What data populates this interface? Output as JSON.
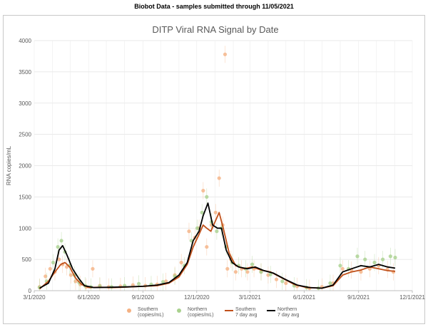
{
  "header": {
    "text": "Biobot Data - samples submitted through 11/05/2021"
  },
  "chart_data": {
    "type": "line",
    "title": "DITP Viral RNA Signal by Date",
    "ylabel": "RNA copies/mL",
    "xlabel": "",
    "ylim": [
      0,
      4000
    ],
    "yticks": [
      "0",
      "500",
      "1000",
      "1500",
      "2000",
      "2500",
      "3000",
      "3500",
      "4000"
    ],
    "xticks": [
      "3/1/2020",
      "6/1/2020",
      "9/1/2020",
      "12/1/2020",
      "3/1/2021",
      "6/1/2021",
      "9/1/2021",
      "12/1/2021"
    ],
    "xtick_values": [
      "2020-03-01",
      "2020-06-01",
      "2020-09-01",
      "2020-12-01",
      "2021-03-01",
      "2021-06-01",
      "2021-09-01",
      "2021-12-01"
    ],
    "xlim": [
      "2020-03-01",
      "2021-12-01"
    ],
    "grid": true,
    "legend_position": "bottom",
    "colors": {
      "southern": "#f4b183",
      "northern": "#a9d18e",
      "southern_avg": "#c0501a",
      "northern_avg": "#000000"
    },
    "series": [
      {
        "name": "Southern (copies/mL)",
        "name_lines": [
          "Southern",
          "(copies/mL)"
        ],
        "kind": "scatter",
        "x": [
          "2020-03-10",
          "2020-03-20",
          "2020-03-28",
          "2020-04-05",
          "2020-04-12",
          "2020-04-18",
          "2020-04-25",
          "2020-05-02",
          "2020-05-10",
          "2020-05-18",
          "2020-05-28",
          "2020-06-08",
          "2020-06-20",
          "2020-07-05",
          "2020-07-25",
          "2020-08-15",
          "2020-09-05",
          "2020-09-25",
          "2020-10-10",
          "2020-10-25",
          "2020-11-05",
          "2020-11-18",
          "2020-11-28",
          "2020-12-05",
          "2020-12-12",
          "2020-12-18",
          "2020-12-26",
          "2021-01-02",
          "2021-01-08",
          "2021-01-14",
          "2021-01-18",
          "2021-01-22",
          "2021-01-28",
          "2021-02-05",
          "2021-02-15",
          "2021-02-25",
          "2021-03-08",
          "2021-03-20",
          "2021-04-01",
          "2021-04-15",
          "2021-05-01",
          "2021-05-20",
          "2021-06-10",
          "2021-07-01",
          "2021-07-20",
          "2021-08-05",
          "2021-08-20",
          "2021-09-05",
          "2021-09-20",
          "2021-10-05",
          "2021-10-20",
          "2021-10-30"
        ],
        "values": [
          60,
          230,
          350,
          300,
          500,
          420,
          380,
          250,
          150,
          100,
          60,
          350,
          80,
          60,
          70,
          90,
          80,
          100,
          150,
          250,
          450,
          950,
          850,
          1000,
          1600,
          700,
          1050,
          1250,
          1800,
          1050,
          3780,
          350,
          500,
          300,
          350,
          300,
          350,
          300,
          250,
          180,
          120,
          70,
          40,
          60,
          120,
          350,
          330,
          300,
          350,
          400,
          340,
          300
        ]
      },
      {
        "name": "Northern (copies/mL)",
        "name_lines": [
          "Northern",
          "(copies/mL)"
        ],
        "kind": "scatter",
        "x": [
          "2020-03-10",
          "2020-03-22",
          "2020-04-02",
          "2020-04-10",
          "2020-04-16",
          "2020-04-22",
          "2020-04-30",
          "2020-05-08",
          "2020-05-16",
          "2020-05-26",
          "2020-06-05",
          "2020-06-20",
          "2020-07-10",
          "2020-08-01",
          "2020-08-25",
          "2020-09-15",
          "2020-10-05",
          "2020-10-25",
          "2020-11-10",
          "2020-11-22",
          "2020-12-02",
          "2020-12-10",
          "2020-12-18",
          "2020-12-26",
          "2021-01-04",
          "2021-01-12",
          "2021-01-20",
          "2021-01-30",
          "2021-02-10",
          "2021-02-22",
          "2021-03-05",
          "2021-03-20",
          "2021-04-05",
          "2021-04-25",
          "2021-05-15",
          "2021-06-05",
          "2021-06-25",
          "2021-07-15",
          "2021-08-01",
          "2021-08-15",
          "2021-08-30",
          "2021-09-12",
          "2021-09-28",
          "2021-10-12",
          "2021-10-25",
          "2021-11-02"
        ],
        "values": [
          50,
          150,
          450,
          700,
          800,
          620,
          400,
          250,
          130,
          80,
          60,
          70,
          60,
          80,
          110,
          100,
          140,
          230,
          400,
          800,
          1000,
          1250,
          1500,
          1100,
          950,
          1000,
          700,
          450,
          400,
          350,
          420,
          300,
          260,
          150,
          80,
          50,
          40,
          120,
          400,
          350,
          550,
          500,
          450,
          500,
          550,
          530
        ]
      },
      {
        "name": "Southern 7 day avg",
        "name_lines": [
          "Southern",
          "7 day avg"
        ],
        "kind": "line",
        "x": [
          "2020-03-10",
          "2020-03-25",
          "2020-04-05",
          "2020-04-15",
          "2020-04-22",
          "2020-04-30",
          "2020-05-10",
          "2020-05-20",
          "2020-06-01",
          "2020-06-20",
          "2020-07-15",
          "2020-08-10",
          "2020-09-01",
          "2020-09-25",
          "2020-10-15",
          "2020-11-01",
          "2020-11-15",
          "2020-11-25",
          "2020-12-05",
          "2020-12-12",
          "2020-12-18",
          "2020-12-25",
          "2021-01-01",
          "2021-01-08",
          "2021-01-15",
          "2021-01-25",
          "2021-02-05",
          "2021-02-20",
          "2021-03-05",
          "2021-03-20",
          "2021-04-05",
          "2021-04-25",
          "2021-05-15",
          "2021-06-05",
          "2021-07-01",
          "2021-07-20",
          "2021-08-05",
          "2021-08-20",
          "2021-09-05",
          "2021-09-20",
          "2021-10-05",
          "2021-10-20",
          "2021-11-02"
        ],
        "values": [
          30,
          150,
          300,
          420,
          450,
          380,
          200,
          100,
          50,
          55,
          50,
          60,
          70,
          80,
          120,
          220,
          420,
          700,
          900,
          1050,
          1000,
          950,
          1100,
          1250,
          1000,
          600,
          400,
          350,
          380,
          330,
          300,
          200,
          100,
          50,
          40,
          80,
          250,
          300,
          330,
          380,
          350,
          320,
          310
        ]
      },
      {
        "name": "Northern 7 day avg",
        "name_lines": [
          "Northern",
          "7 day avg"
        ],
        "kind": "line",
        "x": [
          "2020-03-10",
          "2020-03-25",
          "2020-04-05",
          "2020-04-12",
          "2020-04-18",
          "2020-04-25",
          "2020-05-05",
          "2020-05-15",
          "2020-05-25",
          "2020-06-10",
          "2020-07-10",
          "2020-08-05",
          "2020-09-01",
          "2020-09-25",
          "2020-10-15",
          "2020-11-01",
          "2020-11-15",
          "2020-11-25",
          "2020-12-05",
          "2020-12-12",
          "2020-12-20",
          "2020-12-28",
          "2021-01-05",
          "2021-01-12",
          "2021-01-20",
          "2021-01-30",
          "2021-02-10",
          "2021-02-25",
          "2021-03-10",
          "2021-03-25",
          "2021-04-10",
          "2021-04-30",
          "2021-05-20",
          "2021-06-10",
          "2021-07-01",
          "2021-07-20",
          "2021-08-05",
          "2021-08-20",
          "2021-09-05",
          "2021-09-20",
          "2021-10-05",
          "2021-10-20",
          "2021-11-02"
        ],
        "values": [
          40,
          120,
          350,
          650,
          720,
          580,
          350,
          200,
          80,
          50,
          55,
          60,
          70,
          90,
          130,
          250,
          450,
          800,
          950,
          1200,
          1400,
          1050,
          1000,
          1000,
          650,
          450,
          380,
          350,
          380,
          320,
          280,
          180,
          90,
          50,
          40,
          90,
          300,
          350,
          400,
          380,
          420,
          380,
          360
        ]
      }
    ]
  }
}
